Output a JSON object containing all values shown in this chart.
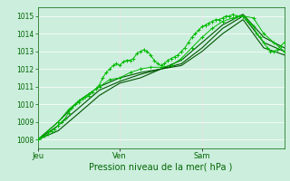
{
  "bg_color": "#cceedd",
  "grid_color": "#ffffff",
  "line_color_bright": "#00bb00",
  "line_color_dark": "#005500",
  "xlabel": "Pression niveau de la mer( hPa )",
  "xtick_labels": [
    "Jeu",
    "Ven",
    "Sam"
  ],
  "xtick_positions": [
    0.0,
    0.333,
    0.667
  ],
  "ylim": [
    1007.5,
    1015.5
  ],
  "yticks": [
    1008,
    1009,
    1010,
    1011,
    1012,
    1013,
    1014,
    1015
  ],
  "xlim": [
    0.0,
    1.0
  ],
  "series": [
    {
      "x": [
        0.0,
        0.014,
        0.028,
        0.042,
        0.056,
        0.069,
        0.083,
        0.097,
        0.111,
        0.125,
        0.139,
        0.153,
        0.167,
        0.181,
        0.194,
        0.208,
        0.222,
        0.236,
        0.25,
        0.264,
        0.278,
        0.292,
        0.306,
        0.319,
        0.333,
        0.347,
        0.361,
        0.375,
        0.389,
        0.403,
        0.417,
        0.431,
        0.444,
        0.458,
        0.472,
        0.486,
        0.5,
        0.514,
        0.528,
        0.542,
        0.556,
        0.569,
        0.583,
        0.597,
        0.611,
        0.625,
        0.639,
        0.653,
        0.667,
        0.681,
        0.694,
        0.708,
        0.722,
        0.736,
        0.75,
        0.764,
        0.778,
        0.792,
        0.806,
        0.819,
        0.833,
        0.847,
        0.861,
        0.875,
        0.889,
        0.903,
        0.917,
        0.931,
        0.944,
        0.958,
        0.972,
        0.986,
        1.0
      ],
      "y": [
        1008.0,
        1008.1,
        1008.2,
        1008.3,
        1008.5,
        1008.6,
        1008.8,
        1009.0,
        1009.2,
        1009.5,
        1009.8,
        1010.0,
        1010.1,
        1010.3,
        1010.4,
        1010.5,
        1010.7,
        1010.9,
        1011.1,
        1011.5,
        1011.8,
        1012.0,
        1012.2,
        1012.3,
        1012.2,
        1012.4,
        1012.5,
        1012.5,
        1012.6,
        1012.9,
        1013.0,
        1013.1,
        1013.0,
        1012.8,
        1012.5,
        1012.3,
        1012.2,
        1012.3,
        1012.5,
        1012.6,
        1012.7,
        1012.8,
        1013.0,
        1013.2,
        1013.5,
        1013.8,
        1014.0,
        1014.2,
        1014.4,
        1014.5,
        1014.6,
        1014.7,
        1014.8,
        1014.8,
        1014.9,
        1015.0,
        1015.0,
        1015.1,
        1015.0,
        1015.0,
        1015.0,
        1014.8,
        1014.6,
        1014.4,
        1014.0,
        1013.8,
        1013.5,
        1013.2,
        1013.0,
        1013.0,
        1013.1,
        1013.3,
        1013.5
      ],
      "style": "bright",
      "marker": "+"
    },
    {
      "x": [
        0.0,
        0.042,
        0.083,
        0.125,
        0.167,
        0.208,
        0.25,
        0.292,
        0.333,
        0.375,
        0.417,
        0.458,
        0.5,
        0.542,
        0.583,
        0.625,
        0.667,
        0.708,
        0.75,
        0.792,
        0.833,
        0.875,
        0.917,
        0.958,
        1.0
      ],
      "y": [
        1008.0,
        1008.5,
        1009.0,
        1009.7,
        1010.2,
        1010.6,
        1011.0,
        1011.4,
        1011.5,
        1011.8,
        1012.0,
        1012.1,
        1012.1,
        1012.2,
        1012.6,
        1013.2,
        1013.8,
        1014.3,
        1014.7,
        1014.9,
        1015.0,
        1014.9,
        1014.0,
        1013.5,
        1013.0
      ],
      "style": "bright",
      "marker": "+"
    },
    {
      "x": [
        0.0,
        0.083,
        0.167,
        0.25,
        0.333,
        0.417,
        0.5,
        0.583,
        0.667,
        0.75,
        0.833,
        0.917,
        1.0
      ],
      "y": [
        1008.0,
        1009.0,
        1010.2,
        1011.0,
        1011.5,
        1011.8,
        1012.0,
        1012.5,
        1013.5,
        1014.5,
        1015.1,
        1013.8,
        1013.2
      ],
      "style": "dark",
      "marker": null
    },
    {
      "x": [
        0.0,
        0.083,
        0.167,
        0.25,
        0.333,
        0.417,
        0.5,
        0.583,
        0.667,
        0.75,
        0.833,
        0.917,
        1.0
      ],
      "y": [
        1008.0,
        1008.8,
        1009.8,
        1010.8,
        1011.3,
        1011.7,
        1012.0,
        1012.3,
        1013.2,
        1014.3,
        1015.0,
        1013.5,
        1013.0
      ],
      "style": "dark",
      "marker": null
    },
    {
      "x": [
        0.0,
        0.083,
        0.167,
        0.25,
        0.333,
        0.417,
        0.5,
        0.583,
        0.667,
        0.75,
        0.833,
        0.917,
        1.0
      ],
      "y": [
        1008.0,
        1008.5,
        1009.5,
        1010.5,
        1011.2,
        1011.5,
        1012.0,
        1012.2,
        1013.0,
        1014.0,
        1014.8,
        1013.2,
        1012.8
      ],
      "style": "dark",
      "marker": null
    }
  ],
  "vline_color": "#999999",
  "spine_color": "#006600",
  "tick_color": "#006600",
  "xlabel_fontsize": 7,
  "ytick_fontsize": 5.5,
  "xtick_fontsize": 6
}
